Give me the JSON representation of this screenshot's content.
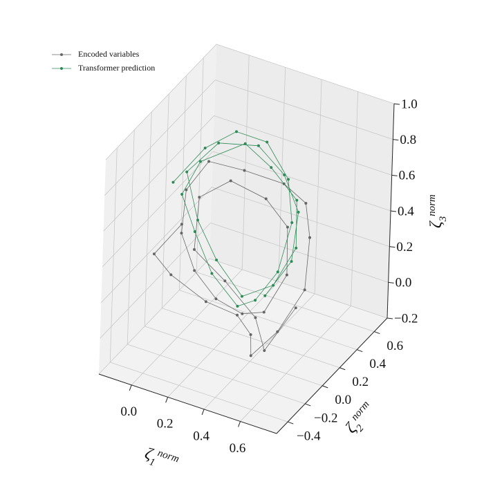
{
  "chart_data": {
    "type": "line3d",
    "xlabel": {
      "symbol": "ζ",
      "sub": "1",
      "sup": "norm"
    },
    "ylabel": {
      "symbol": "ζ",
      "sub": "2",
      "sup": "norm"
    },
    "zlabel": {
      "symbol": "ζ",
      "sub": "3",
      "sup": "norm"
    },
    "xlim": [
      -0.18,
      0.8
    ],
    "ylim": [
      -0.53,
      0.75
    ],
    "zlim": [
      -0.2,
      1.0
    ],
    "xticks": [
      {
        "value": 0,
        "label": "0.0"
      },
      0.2,
      0.4,
      0.6
    ],
    "yticks": [
      {
        "value": -0.4,
        "label": "−0.4"
      },
      {
        "value": -0.2,
        "label": "−0.2"
      },
      {
        "value": 0,
        "label": "0.0"
      },
      0.2,
      0.4,
      0.6
    ],
    "zticks": [
      {
        "value": -0.2,
        "label": "−0.2"
      },
      {
        "value": 0,
        "label": "0.0"
      },
      0.2,
      0.4,
      0.6,
      0.8,
      {
        "value": 1,
        "label": "1.0"
      }
    ],
    "grid": true,
    "legend": "upper left",
    "series": [
      {
        "name": "Encoded variables",
        "color": "#666666",
        "x": [
          0.05,
          -0.05,
          0.0,
          0.15,
          0.3,
          0.4,
          0.45,
          0.5,
          0.55,
          0.5,
          0.45,
          0.35,
          0.2,
          0.05,
          0.0,
          0.05,
          0.15,
          0.25,
          0.35,
          0.4,
          0.45,
          0.4,
          0.3,
          0.15,
          0.05,
          0.1,
          0.25,
          0.4,
          0.5,
          0.55
        ],
        "y": [
          -0.1,
          -0.2,
          -0.1,
          0.0,
          0.05,
          0.0,
          -0.1,
          0.1,
          0.3,
          0.45,
          0.5,
          0.45,
          0.3,
          0.2,
          0.05,
          -0.1,
          -0.15,
          -0.1,
          0.0,
          0.15,
          0.3,
          0.4,
          0.35,
          0.25,
          0.1,
          -0.05,
          0.0,
          0.05,
          -0.05,
          0.2
        ],
        "z": [
          0.5,
          0.35,
          0.2,
          0.05,
          0.0,
          -0.05,
          -0.1,
          -0.05,
          0.1,
          0.3,
          0.45,
          0.55,
          0.65,
          0.7,
          0.6,
          0.45,
          0.3,
          0.15,
          0.05,
          0.0,
          0.15,
          0.35,
          0.5,
          0.6,
          0.55,
          0.35,
          0.2,
          0.02,
          -0.08,
          0.05
        ]
      },
      {
        "name": "Transformer prediction",
        "color": "#2e8b57",
        "x": [
          -0.05,
          0.05,
          0.15,
          0.25,
          0.35,
          0.4,
          0.4,
          0.35,
          0.3,
          0.2,
          0.1,
          0.0,
          0.05,
          0.2,
          0.3,
          0.4,
          0.45,
          0.4,
          0.3,
          0.2,
          0.1,
          0.0,
          0.1,
          0.25,
          0.35,
          0.42,
          0.45,
          0.38
        ],
        "y": [
          0.0,
          0.15,
          0.3,
          0.45,
          0.5,
          0.45,
          0.3,
          0.15,
          0.05,
          -0.05,
          -0.05,
          0.0,
          0.1,
          0.3,
          0.4,
          0.5,
          0.4,
          0.25,
          0.1,
          0.0,
          -0.02,
          0.05,
          0.2,
          0.35,
          0.45,
          0.48,
          0.35,
          0.2
        ],
        "z": [
          0.65,
          0.8,
          0.85,
          0.75,
          0.55,
          0.35,
          0.15,
          0.05,
          0.05,
          0.25,
          0.45,
          0.6,
          0.75,
          0.8,
          0.65,
          0.45,
          0.25,
          0.1,
          0.08,
          0.3,
          0.5,
          0.7,
          0.82,
          0.78,
          0.6,
          0.4,
          0.2,
          0.06
        ]
      }
    ]
  }
}
